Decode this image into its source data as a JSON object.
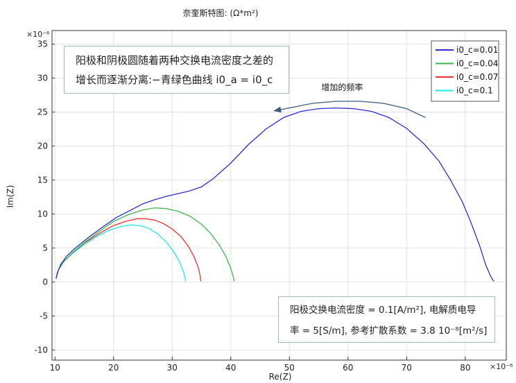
{
  "chart_data": {
    "type": "line",
    "title": "奈奎斯特图: (Ω*m²)",
    "xlabel": "Re(Z)",
    "ylabel": "Im(Z)",
    "x_exponent": "×10⁻⁶",
    "y_exponent": "×10⁻⁶",
    "xlim": [
      9.5,
      87
    ],
    "ylim": [
      -11.5,
      37
    ],
    "xticks": [
      10,
      20,
      30,
      40,
      50,
      60,
      70,
      80
    ],
    "yticks": [
      -10,
      -5,
      0,
      5,
      10,
      15,
      20,
      25,
      30,
      35
    ],
    "grid": true,
    "legend_position": "top-right",
    "series": [
      {
        "name": "i0_c=0.01",
        "color": "#2b2bd1",
        "x": [
          10.2,
          10.4,
          11.0,
          12.0,
          13.5,
          15.5,
          18.0,
          20.5,
          23.0,
          25.0,
          27.0,
          29.0,
          31.0,
          33.0,
          35.0,
          37.0,
          40.0,
          43.0,
          46.0,
          49.0,
          52.0,
          55.0,
          58.0,
          61.0,
          64.0,
          67.0,
          70.0,
          73.0,
          75.5,
          77.5,
          79.5,
          81.0,
          82.5,
          83.5,
          84.3,
          84.7,
          84.9
        ],
        "y": [
          0.5,
          1.3,
          2.6,
          3.8,
          5.0,
          6.4,
          8.0,
          9.5,
          10.6,
          11.5,
          12.1,
          12.6,
          13.0,
          13.4,
          14.0,
          15.2,
          17.5,
          20.2,
          22.5,
          24.2,
          25.1,
          25.5,
          25.6,
          25.5,
          25.1,
          24.2,
          22.6,
          20.3,
          17.8,
          15.0,
          11.8,
          8.7,
          5.2,
          2.5,
          0.9,
          0.3,
          0.1
        ]
      },
      {
        "name": "i0_c=0.04",
        "color": "#3cb44b",
        "x": [
          10.2,
          10.6,
          11.5,
          13.0,
          15.0,
          17.5,
          20.0,
          22.5,
          25.0,
          27.0,
          29.0,
          31.0,
          33.0,
          35.0,
          36.5,
          38.0,
          39.2,
          40.0,
          40.4,
          40.6
        ],
        "y": [
          0.5,
          1.8,
          3.0,
          4.3,
          5.8,
          7.4,
          8.9,
          9.9,
          10.6,
          10.9,
          10.8,
          10.4,
          9.7,
          8.5,
          7.2,
          5.5,
          3.7,
          2.0,
          0.8,
          0.1
        ]
      },
      {
        "name": "i0_c=0.07",
        "color": "#e8302b",
        "x": [
          10.2,
          10.6,
          11.5,
          13.0,
          15.0,
          17.5,
          20.0,
          22.0,
          24.0,
          25.5,
          27.0,
          28.5,
          30.0,
          31.5,
          32.8,
          33.8,
          34.5,
          34.8,
          34.9
        ],
        "y": [
          0.5,
          1.8,
          3.0,
          4.3,
          5.7,
          7.1,
          8.3,
          8.9,
          9.3,
          9.3,
          9.1,
          8.6,
          7.8,
          6.7,
          5.2,
          3.6,
          2.0,
          0.8,
          0.1
        ]
      },
      {
        "name": "i0_c=0.1",
        "color": "#1fe6e6",
        "x": [
          10.2,
          10.6,
          11.5,
          13.0,
          15.0,
          17.0,
          19.0,
          21.0,
          23.0,
          24.5,
          26.0,
          27.5,
          29.0,
          30.3,
          31.3,
          31.9,
          32.2,
          32.3
        ],
        "y": [
          0.5,
          1.8,
          3.0,
          4.2,
          5.5,
          6.6,
          7.5,
          8.1,
          8.4,
          8.3,
          7.9,
          7.1,
          5.9,
          4.4,
          2.9,
          1.6,
          0.6,
          0.1
        ]
      }
    ],
    "arrow": {
      "label": "增加的频率",
      "x": [
        73.2,
        70.0,
        66.0,
        62.0,
        58.0,
        54.0,
        50.0,
        47.5
      ],
      "y": [
        24.2,
        25.5,
        26.3,
        26.6,
        26.6,
        26.3,
        25.6,
        25.2
      ],
      "label_x": 59,
      "label_y": 28.2
    },
    "annotation_top": {
      "line1": "阳极和阴极圆随着两种交换电流密度之差的",
      "line2": "增长而逐渐分离:−青绿色曲线 i0_a = i0_c"
    },
    "annotation_bottom": {
      "line1": "阳极交换电流密度 = 0.1[A/m²], 电解质电导",
      "line2": "率 = 5[S/m], 参考扩散系数 = 3.8 10⁻⁸[m²/s]"
    }
  }
}
